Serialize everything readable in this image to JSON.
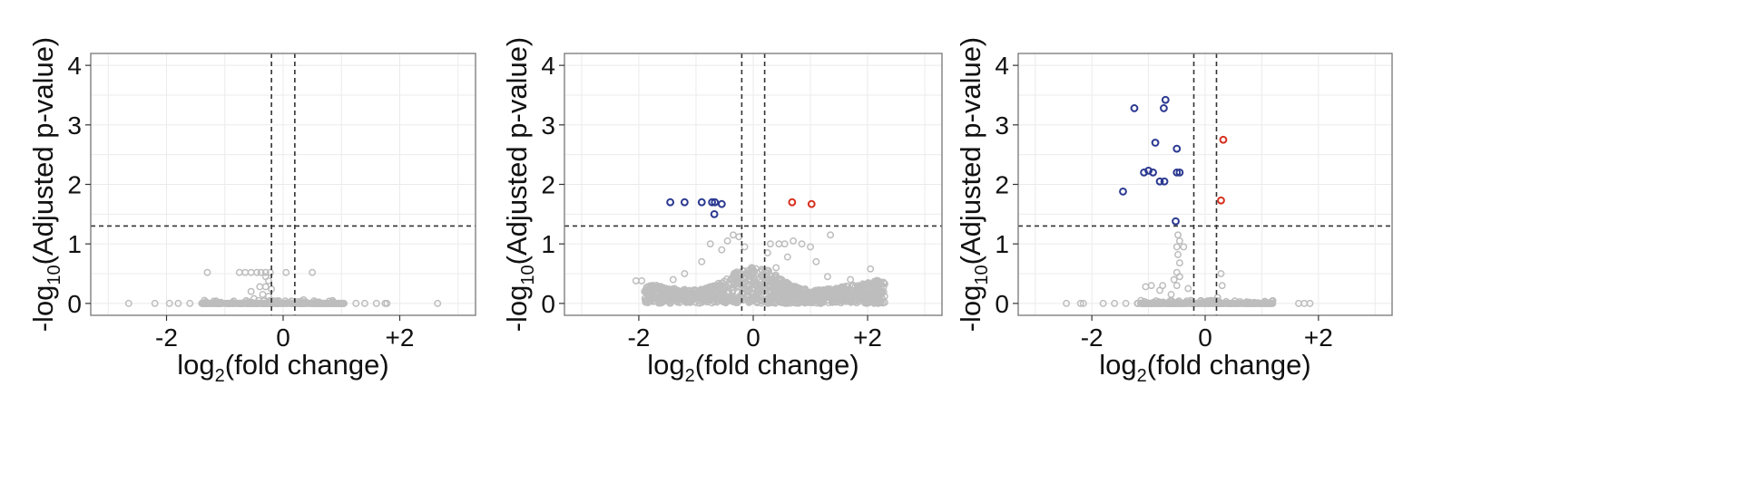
{
  "colors": {
    "neutral": "#bdbdbd",
    "down": "#2b3990",
    "up": "#d7301f",
    "threshold": "#333333",
    "grid": "#ebebeb",
    "frame": "#7f7f7f"
  },
  "axis_text": {
    "x_prefix": "log",
    "x_sub": "2",
    "x_suffix": "(fold change)",
    "y_prefix": "-log",
    "y_sub": "10",
    "y_suffix": "(Adjusted p-value)"
  },
  "chart_data": [
    {
      "type": "scatter",
      "xlim": [
        -3.3,
        3.3
      ],
      "ylim": [
        -0.2,
        4.2
      ],
      "x_ticks": [
        -2,
        0,
        2
      ],
      "x_tick_labels": [
        "-2",
        "0",
        "+2"
      ],
      "y_ticks": [
        0,
        1,
        2,
        3,
        4
      ],
      "y_tick_labels": [
        "0",
        "1",
        "2",
        "3",
        "4"
      ],
      "grid": true,
      "thresholds": {
        "fc": [
          -0.2,
          0.2
        ],
        "p": 1.3
      },
      "cloud": {
        "shape": "flat",
        "n": 340,
        "xmin": -1.4,
        "xmax": 1.05,
        "peak": 0.03,
        "sigma": 0.5,
        "cap": 0.05
      },
      "background_points": [
        [
          -2.65,
          0
        ],
        [
          -2.2,
          0
        ],
        [
          -1.95,
          0
        ],
        [
          -1.8,
          0
        ],
        [
          -1.6,
          0
        ],
        [
          1.25,
          0
        ],
        [
          1.4,
          0
        ],
        [
          1.6,
          0
        ],
        [
          1.75,
          0
        ],
        [
          1.78,
          0
        ],
        [
          2.65,
          0
        ],
        [
          -1.3,
          0.52
        ],
        [
          -0.75,
          0.52
        ],
        [
          -0.65,
          0.52
        ],
        [
          -0.55,
          0.52
        ],
        [
          -0.45,
          0.52
        ],
        [
          -0.38,
          0.52
        ],
        [
          -0.3,
          0.52
        ],
        [
          -0.22,
          0.52
        ],
        [
          0.05,
          0.52
        ],
        [
          0.5,
          0.52
        ],
        [
          -0.3,
          0.45
        ],
        [
          -0.25,
          0.38
        ],
        [
          -0.4,
          0.28
        ],
        [
          -0.3,
          0.28
        ],
        [
          -0.2,
          0.24
        ],
        [
          -0.55,
          0.2
        ],
        [
          -0.35,
          0.15
        ],
        [
          -0.25,
          0.12
        ],
        [
          -0.5,
          0.08
        ],
        [
          0.35,
          0.06
        ]
      ],
      "down_points": [],
      "up_points": []
    },
    {
      "type": "scatter",
      "xlim": [
        -3.3,
        3.3
      ],
      "ylim": [
        -0.2,
        4.2
      ],
      "x_ticks": [
        -2,
        0,
        2
      ],
      "x_tick_labels": [
        "-2",
        "0",
        "+2"
      ],
      "y_ticks": [
        0,
        1,
        2,
        3,
        4
      ],
      "y_tick_labels": [
        "0",
        "1",
        "2",
        "3",
        "4"
      ],
      "grid": true,
      "thresholds": {
        "fc": [
          -0.2,
          0.2
        ],
        "p": 1.3
      },
      "cloud": {
        "shape": "volcano",
        "n": 900,
        "xmin": -1.9,
        "xmax": 2.3,
        "peak": 0.6,
        "sigma": 0.45,
        "cap": 1.0
      },
      "background_points": [
        [
          -2.05,
          0.38
        ],
        [
          -1.95,
          0.38
        ],
        [
          -1.75,
          0.2
        ],
        [
          -1.6,
          0.15
        ],
        [
          2.2,
          0.28
        ],
        [
          2.3,
          0.33
        ],
        [
          2.05,
          0.58
        ],
        [
          1.9,
          0.2
        ],
        [
          1.7,
          0.4
        ],
        [
          -0.75,
          1.0
        ],
        [
          -0.45,
          1.05
        ],
        [
          -0.35,
          1.15
        ],
        [
          -0.25,
          1.12
        ],
        [
          0.3,
          1.0
        ],
        [
          0.45,
          1.0
        ],
        [
          0.55,
          1.0
        ],
        [
          0.7,
          1.05
        ],
        [
          0.85,
          1.0
        ],
        [
          1.0,
          0.95
        ],
        [
          1.35,
          1.15
        ],
        [
          -0.55,
          0.9
        ],
        [
          -0.15,
          0.95
        ],
        [
          0.25,
          0.85
        ],
        [
          0.6,
          0.78
        ],
        [
          -0.9,
          0.7
        ],
        [
          1.1,
          0.7
        ],
        [
          0.4,
          0.6
        ],
        [
          -1.2,
          0.5
        ],
        [
          1.3,
          0.45
        ],
        [
          -1.4,
          0.4
        ]
      ],
      "down_points": [
        [
          -1.45,
          1.7
        ],
        [
          -1.2,
          1.7
        ],
        [
          -0.9,
          1.7
        ],
        [
          -0.72,
          1.7
        ],
        [
          -0.67,
          1.7
        ],
        [
          -0.55,
          1.67
        ],
        [
          -0.68,
          1.5
        ]
      ],
      "up_points": [
        [
          0.68,
          1.7
        ],
        [
          1.02,
          1.67
        ]
      ]
    },
    {
      "type": "scatter",
      "xlim": [
        -3.3,
        3.3
      ],
      "ylim": [
        -0.2,
        4.2
      ],
      "x_ticks": [
        -2,
        0,
        2
      ],
      "x_tick_labels": [
        "-2",
        "0",
        "+2"
      ],
      "y_ticks": [
        0,
        1,
        2,
        3,
        4
      ],
      "y_tick_labels": [
        "0",
        "1",
        "2",
        "3",
        "4"
      ],
      "grid": true,
      "thresholds": {
        "fc": [
          -0.2,
          0.2
        ],
        "p": 1.3
      },
      "cloud": {
        "shape": "flat",
        "n": 320,
        "xmin": -1.2,
        "xmax": 1.2,
        "peak": 0.03,
        "sigma": 0.5,
        "cap": 0.05
      },
      "background_points": [
        [
          -2.45,
          0
        ],
        [
          -2.2,
          0
        ],
        [
          -2.15,
          0
        ],
        [
          -1.8,
          0
        ],
        [
          -1.6,
          0
        ],
        [
          -1.4,
          0
        ],
        [
          1.65,
          0
        ],
        [
          1.75,
          0
        ],
        [
          1.85,
          0
        ],
        [
          -0.48,
          1.15
        ],
        [
          -0.45,
          1.05
        ],
        [
          -0.5,
          0.95
        ],
        [
          -0.38,
          0.95
        ],
        [
          -0.48,
          0.82
        ],
        [
          -0.45,
          0.68
        ],
        [
          -0.5,
          0.52
        ],
        [
          -0.45,
          0.45
        ],
        [
          -0.55,
          0.4
        ],
        [
          -0.5,
          0.3
        ],
        [
          -0.75,
          0.3
        ],
        [
          -0.8,
          0.22
        ],
        [
          -0.6,
          0.15
        ],
        [
          -0.95,
          0.3
        ],
        [
          -1.05,
          0.28
        ],
        [
          0.28,
          0.5
        ],
        [
          0.3,
          0.3
        ],
        [
          0.22,
          0.1
        ],
        [
          -0.3,
          0.25
        ],
        [
          -0.25,
          0.05
        ],
        [
          0.1,
          0.05
        ]
      ],
      "down_points": [
        [
          -1.25,
          3.28
        ],
        [
          -0.7,
          3.42
        ],
        [
          -0.73,
          3.28
        ],
        [
          -0.88,
          2.7
        ],
        [
          -0.5,
          2.6
        ],
        [
          -1.08,
          2.2
        ],
        [
          -1.0,
          2.23
        ],
        [
          -0.92,
          2.2
        ],
        [
          -0.5,
          2.2
        ],
        [
          -0.45,
          2.2
        ],
        [
          -0.8,
          2.05
        ],
        [
          -0.72,
          2.05
        ],
        [
          -1.45,
          1.88
        ],
        [
          -0.52,
          1.38
        ]
      ],
      "up_points": [
        [
          0.32,
          2.75
        ],
        [
          0.28,
          1.73
        ]
      ]
    }
  ]
}
